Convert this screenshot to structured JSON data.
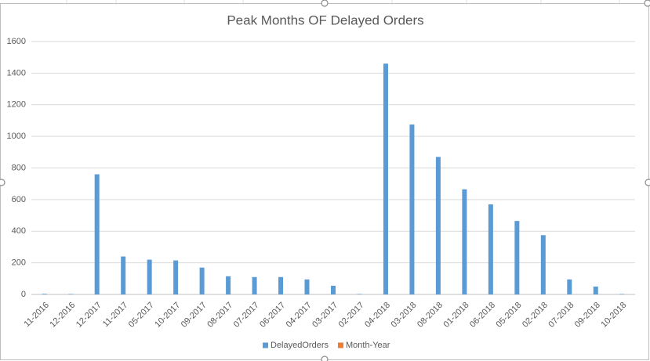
{
  "chart_data": {
    "type": "bar",
    "title": "Peak Months OF Delayed Orders",
    "categories": [
      "11-2016",
      "12-2016",
      "12-2017",
      "11-2017",
      "05-2017",
      "10-2017",
      "09-2017",
      "08-2017",
      "07-2017",
      "06-2017",
      "04-2017",
      "03-2017",
      "02-2017",
      "04-2018",
      "03-2018",
      "08-2018",
      "01-2018",
      "06-2018",
      "05-2018",
      "02-2018",
      "07-2018",
      "09-2018",
      "10-2018"
    ],
    "series": [
      {
        "name": "DelayedOrders",
        "color": "#5b9bd5",
        "values": [
          4,
          3,
          760,
          240,
          220,
          215,
          170,
          115,
          110,
          110,
          95,
          55,
          3,
          1460,
          1075,
          870,
          665,
          570,
          465,
          375,
          95,
          50,
          3
        ]
      },
      {
        "name": "Month-Year",
        "color": "#ed7d31",
        "values": [
          null,
          null,
          null,
          null,
          null,
          null,
          null,
          null,
          null,
          null,
          null,
          null,
          null,
          null,
          null,
          null,
          null,
          null,
          null,
          null,
          null,
          null,
          null
        ]
      }
    ],
    "ylim": [
      0,
      1600
    ],
    "yticks": [
      0,
      200,
      400,
      600,
      800,
      1000,
      1200,
      1400,
      1600
    ],
    "grid": true,
    "legend": "bottom"
  }
}
